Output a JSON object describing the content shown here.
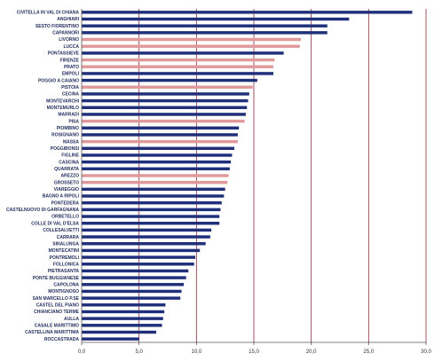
{
  "chart_data": {
    "type": "bar",
    "orientation": "horizontal",
    "title": "",
    "xlabel": "",
    "ylabel": "",
    "xlim": [
      0,
      30
    ],
    "xticks": [
      "0,0",
      "5,0",
      "10,0",
      "15,0",
      "20,0",
      "25,0",
      "30,0"
    ],
    "grid": "vertical",
    "legend": "none",
    "colors": {
      "default": "#1f2f7a",
      "highlight": "#e0999b",
      "grid": "#8a2b3a",
      "axis": "#555555"
    },
    "categories": [
      "CIVITELLA IN VAL DI CHIANA",
      "ANGHIARI",
      "SESTO FIORENTINO",
      "CAPANNORI",
      "LIVORNO",
      "LUCCA",
      "PONTASSIEVE",
      "FIRENZE",
      "PRATO",
      "EMPOLI",
      "POGGIO A CAIANO",
      "PISTOIA",
      "CECINA",
      "MONTEVARCHI",
      "MONTEMURLO",
      "MARRADI",
      "PISA",
      "PIOMBINO",
      "ROSIGNANO",
      "MASSA",
      "POGGIBONSI",
      "FIGLINE",
      "CASCINA",
      "QUARRATA",
      "AREZZO",
      "GROSSETO",
      "VIAREGGIO",
      "BAGNO A RIPOLI",
      "PONTEDERA",
      "CASTELNUOVO DI GARFAGNANA",
      "ORBETELLO",
      "COLLE DI VAL D'ELSA",
      "COLLESALVETTI",
      "CARRARA",
      "SINALUNGA",
      "MONTECATINI",
      "PONTREMOLI",
      "FOLLONICA",
      "PIETRASANTA",
      "PONTE BUGGIANESE",
      "CAPOLONA",
      "MONTIGNOSO",
      "SAN MARCELLO P.SE",
      "CASTEL DEL PIANO",
      "CHIANCIANO TERME",
      "AULLA",
      "CASALE MARITTIMO",
      "CASTELLINA MARITTIMA",
      "ROCCASTRADA"
    ],
    "values": [
      28.8,
      23.3,
      21.4,
      21.4,
      19.1,
      19.0,
      17.6,
      16.8,
      16.7,
      16.7,
      15.3,
      14.9,
      14.6,
      14.5,
      14.4,
      14.3,
      14.2,
      13.7,
      13.6,
      13.6,
      13.3,
      13.1,
      13.0,
      12.9,
      12.8,
      12.7,
      12.5,
      12.4,
      12.2,
      12.1,
      12.0,
      12.0,
      11.3,
      11.2,
      10.8,
      10.3,
      9.9,
      9.8,
      9.3,
      9.1,
      8.9,
      8.7,
      8.6,
      7.3,
      7.2,
      7.1,
      7.0,
      6.5,
      5.0
    ],
    "highlighted": [
      "LIVORNO",
      "LUCCA",
      "FIRENZE",
      "PRATO",
      "PISTOIA",
      "PISA",
      "MASSA",
      "AREZZO",
      "GROSSETO"
    ]
  }
}
